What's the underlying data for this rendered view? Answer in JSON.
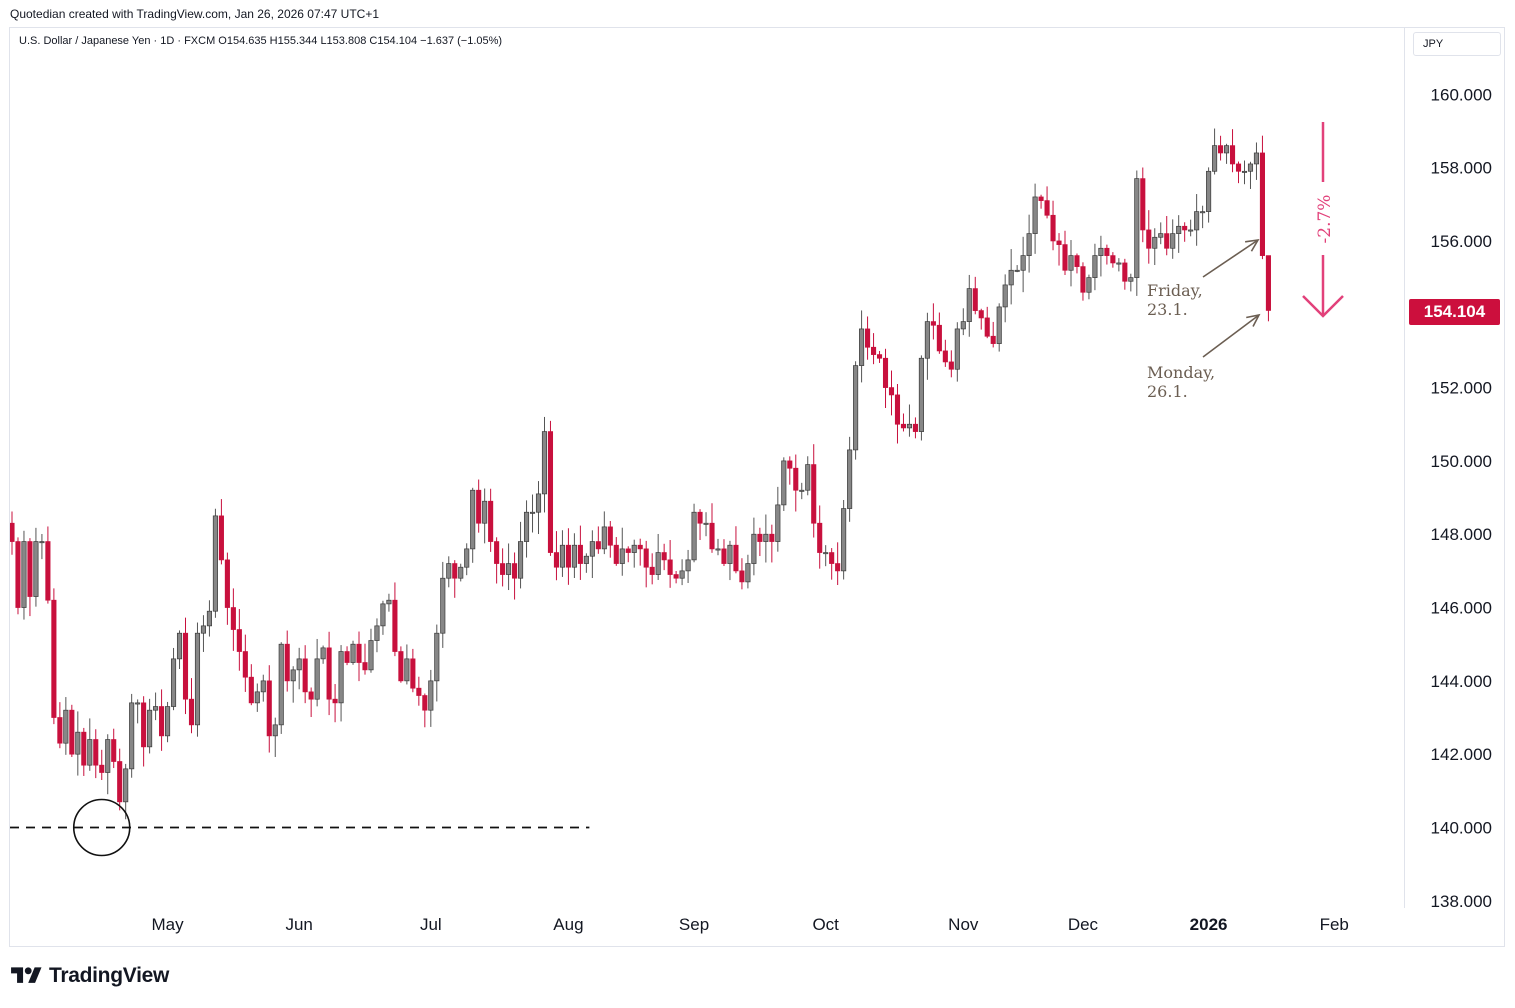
{
  "credit": "Quotedian created with TradingView.com, Jan 26, 2026 07:47 UTC+1",
  "symbol_line": "U.S. Dollar / Japanese Yen · 1D · FXCM   O154.635   H155.344   L153.808   C154.104   −1.637 (−1.05%)",
  "currency_label": "JPY",
  "last_price_label": "154.104",
  "brand": "TradingView",
  "colors": {
    "up": "#878787",
    "down": "#c8103d",
    "wick_down": "#c8103d",
    "wick_up": "#555555",
    "badge": "#cc0f3d",
    "arrow": "#e2417a",
    "note": "#6b5e52"
  },
  "chart_data": {
    "type": "candlestick",
    "title": "U.S. Dollar / Japanese Yen",
    "interval": "1D",
    "source": "FXCM",
    "ohlc_summary": {
      "open": 154.635,
      "high": 155.344,
      "low": 153.808,
      "close": 154.104,
      "change": -1.637,
      "change_pct": -1.05
    },
    "y_ticks": [
      "160.000",
      "158.000",
      "156.000",
      "154.000",
      "152.000",
      "150.000",
      "148.000",
      "146.000",
      "144.000",
      "142.000",
      "140.000",
      "138.000"
    ],
    "y_tick_values": [
      160,
      158,
      156,
      154,
      152,
      150,
      148,
      146,
      144,
      142,
      140,
      138
    ],
    "ylim": [
      137.7,
      161.1
    ],
    "x_ticks": [
      {
        "label": "May",
        "index": 26,
        "bold": false
      },
      {
        "label": "Jun",
        "index": 48,
        "bold": false
      },
      {
        "label": "Jul",
        "index": 70,
        "bold": false
      },
      {
        "label": "Aug",
        "index": 93,
        "bold": false
      },
      {
        "label": "Sep",
        "index": 114,
        "bold": false
      },
      {
        "label": "Oct",
        "index": 136,
        "bold": false
      },
      {
        "label": "Nov",
        "index": 159,
        "bold": false
      },
      {
        "label": "Dec",
        "index": 179,
        "bold": false
      },
      {
        "label": "2026",
        "index": 200,
        "bold": true
      },
      {
        "label": "Feb",
        "index": 221,
        "bold": false
      }
    ],
    "closes": [
      147.8,
      146.0,
      147.8,
      146.3,
      147.8,
      147.8,
      146.2,
      143.0,
      142.3,
      143.2,
      142.0,
      142.6,
      141.7,
      142.4,
      141.7,
      141.5,
      142.4,
      141.8,
      140.7,
      141.6,
      143.4,
      143.4,
      142.2,
      143.2,
      143.3,
      142.5,
      143.3,
      144.6,
      145.3,
      143.5,
      142.8,
      145.3,
      145.5,
      145.9,
      148.5,
      147.3,
      146.0,
      145.4,
      144.8,
      144.1,
      143.4,
      143.7,
      144.0,
      142.5,
      142.8,
      145.0,
      144.0,
      144.3,
      144.6,
      143.7,
      143.5,
      144.6,
      144.9,
      143.5,
      143.4,
      144.8,
      144.5,
      145.0,
      144.5,
      144.3,
      145.1,
      145.5,
      146.1,
      146.2,
      144.8,
      144.0,
      144.6,
      143.8,
      143.6,
      143.2,
      144.0,
      145.3,
      146.8,
      147.2,
      146.8,
      147.1,
      147.6,
      149.2,
      148.3,
      148.9,
      147.8,
      147.2,
      146.9,
      147.2,
      146.8,
      147.8,
      148.6,
      148.6,
      149.1,
      150.8,
      147.5,
      147.1,
      147.7,
      147.1,
      147.7,
      147.2,
      147.4,
      147.8,
      147.6,
      148.2,
      147.7,
      147.2,
      147.6,
      147.5,
      147.7,
      147.6,
      147.1,
      146.9,
      147.5,
      147.3,
      146.9,
      146.8,
      147.0,
      147.3,
      148.6,
      148.3,
      148.3,
      147.6,
      147.6,
      147.2,
      147.7,
      147.0,
      146.7,
      147.2,
      148.0,
      147.8,
      148.0,
      147.8,
      148.8,
      150.0,
      149.8,
      149.2,
      149.2,
      149.9,
      148.3,
      147.5,
      147.5,
      147.2,
      147.0,
      148.7,
      150.3,
      152.6,
      153.6,
      153.1,
      152.9,
      152.8,
      152.0,
      151.8,
      151.0,
      150.9,
      151.0,
      150.8,
      152.8,
      153.8,
      153.7,
      153.0,
      152.7,
      152.5,
      153.6,
      153.8,
      154.7,
      154.1,
      153.9,
      153.4,
      153.2,
      154.2,
      154.8,
      155.2,
      155.2,
      155.6,
      156.2,
      157.2,
      157.1,
      156.7,
      156.0,
      155.9,
      155.2,
      155.6,
      155.3,
      154.6,
      155.0,
      155.6,
      155.8,
      155.6,
      155.4,
      155.4,
      154.9,
      155.0,
      157.7,
      156.3,
      155.8,
      156.1,
      156.2,
      155.8,
      156.2,
      156.4,
      156.3,
      156.3,
      156.8,
      156.8,
      157.9,
      158.6,
      158.4,
      158.6,
      158.1,
      157.9,
      157.9,
      158.1,
      158.4,
      155.6,
      154.104
    ],
    "ohlc_note": "closes are approximate daily closes read from the chart; opens follow the prior close and highs/lows are estimated from the wicks",
    "reference_line": {
      "value": 140.0,
      "style": "dashed",
      "from_index": 0,
      "to_index": 96
    },
    "circle_marker": {
      "index": 15,
      "value": 140.0
    },
    "annotations": {
      "friday": {
        "line1": "Friday,",
        "line2": "23.1."
      },
      "monday": {
        "line1": "Monday,",
        "line2": "26.1."
      },
      "move_label": "-2.7%"
    },
    "grid": false
  }
}
